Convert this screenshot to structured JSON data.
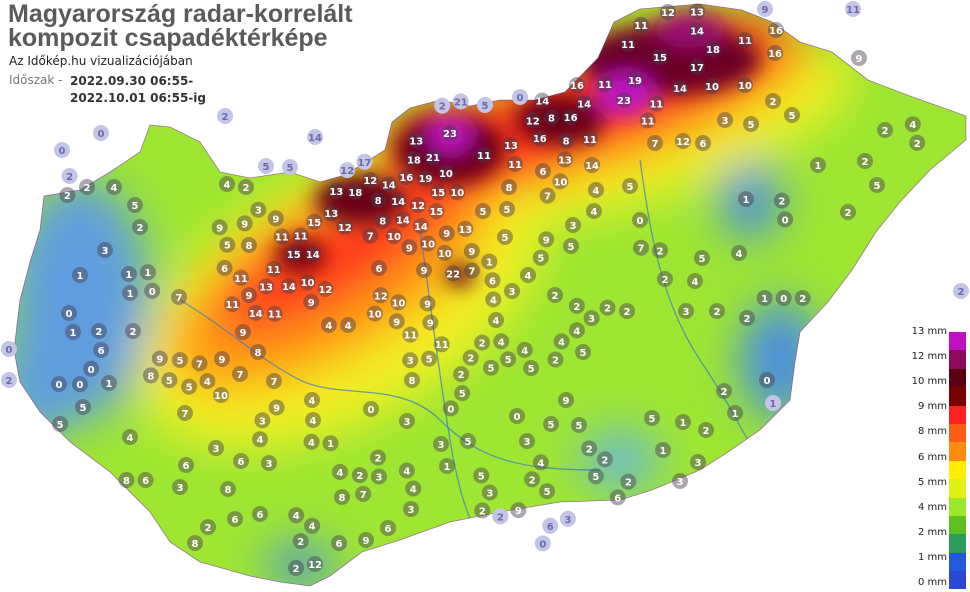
{
  "header": {
    "title_line1": "Magyarország radar-korrelált",
    "title_line2": "kompozit csapadéktérképe",
    "subtitle": "Az Időkép.hu vizualizációjában",
    "period_label": "Időszak -",
    "period_start": "2022.09.30 06:55-",
    "period_end": "2022.10.01 06:55-ig"
  },
  "legend": {
    "items": [
      {
        "label": "13 mm",
        "color": "#c010c0"
      },
      {
        "label": "12 mm",
        "color": "#8a0a5c"
      },
      {
        "label": "10 mm",
        "color": "#5a0012"
      },
      {
        "label": "9 mm",
        "color": "#ff2020"
      },
      {
        "label": "8 mm",
        "color": "#ff5a14"
      },
      {
        "label": "6 mm",
        "color": "#ffee00"
      },
      {
        "label": "5 mm",
        "color": "#e0f010"
      },
      {
        "label": "4 mm",
        "color": "#9ce82a"
      },
      {
        "label": "2 mm",
        "color": "#2e9a5c"
      },
      {
        "label": "1 mm",
        "color": "#2458e0"
      },
      {
        "label": "0 mm",
        "color": "#2a48d8"
      }
    ],
    "bands": [
      "#c010c0",
      "#8a0a5c",
      "#5a0012",
      "#780000",
      "#ff2020",
      "#ff5a14",
      "#ff8a10",
      "#ffee00",
      "#e0f010",
      "#9ce82a",
      "#5cc020",
      "#2e9a5c",
      "#2458e0",
      "#2a48d8"
    ]
  },
  "map": {
    "station_values": [
      2,
      0,
      0,
      2,
      14,
      5,
      5,
      12,
      17,
      2,
      21,
      0,
      5,
      11,
      9,
      0,
      2,
      1,
      2,
      6,
      3,
      0,
      2,
      12,
      13,
      11,
      14,
      18,
      11,
      16,
      16,
      11,
      15,
      17,
      9,
      19,
      11,
      23,
      16,
      14,
      14,
      16,
      8,
      12,
      16,
      8,
      11,
      11,
      14,
      10,
      10,
      2,
      5,
      3,
      5,
      7,
      12,
      6,
      11,
      14,
      13,
      6,
      10,
      7,
      4,
      5,
      11,
      13,
      11,
      23,
      13,
      21,
      18,
      16,
      19,
      10,
      10,
      15,
      15,
      12,
      14,
      14,
      8,
      5,
      5,
      12,
      18,
      13,
      14,
      8,
      14,
      13,
      15,
      12,
      7,
      8,
      10,
      10,
      9,
      9,
      10,
      13,
      9,
      22,
      7,
      1,
      6,
      4,
      4,
      11,
      11,
      15,
      14,
      11,
      13,
      11,
      11,
      14,
      11,
      14,
      10,
      9,
      12,
      6,
      12,
      10,
      10,
      9,
      9,
      11,
      9,
      9,
      4,
      9,
      8,
      9,
      7,
      7,
      5,
      9,
      8,
      5,
      5,
      4,
      10,
      7,
      9,
      6,
      8,
      5,
      9,
      9,
      9,
      3,
      2,
      4,
      2,
      2,
      4,
      5,
      2,
      3,
      1,
      1,
      1,
      0,
      1,
      0,
      1,
      2,
      2,
      7,
      6,
      0,
      1,
      0,
      0,
      5,
      5,
      4,
      7,
      3,
      6,
      8,
      8,
      6,
      3,
      2,
      6,
      8,
      6,
      3,
      4,
      3,
      9,
      6,
      4,
      4,
      0,
      3,
      0,
      2,
      5,
      5,
      4,
      8,
      1,
      4,
      4,
      2,
      2,
      3,
      8,
      7,
      4,
      4,
      3,
      5,
      1,
      5,
      3,
      4,
      5,
      3,
      0,
      9,
      5,
      5,
      2,
      2,
      2,
      5,
      5,
      1,
      1,
      2,
      3,
      3,
      1,
      0,
      2,
      2,
      2,
      2,
      3,
      4,
      4,
      2,
      5,
      4,
      5,
      4,
      2,
      4,
      5,
      5,
      2,
      3,
      2,
      2,
      4,
      3,
      2,
      2,
      1,
      0,
      2,
      4,
      5,
      1,
      2,
      0,
      1,
      2,
      2,
      5,
      2,
      4,
      2,
      2,
      7,
      4,
      5,
      9,
      5,
      5,
      11,
      3,
      4,
      2,
      2,
      12,
      6,
      9,
      6,
      4,
      3,
      2,
      9,
      2,
      6,
      3,
      0
    ]
  }
}
